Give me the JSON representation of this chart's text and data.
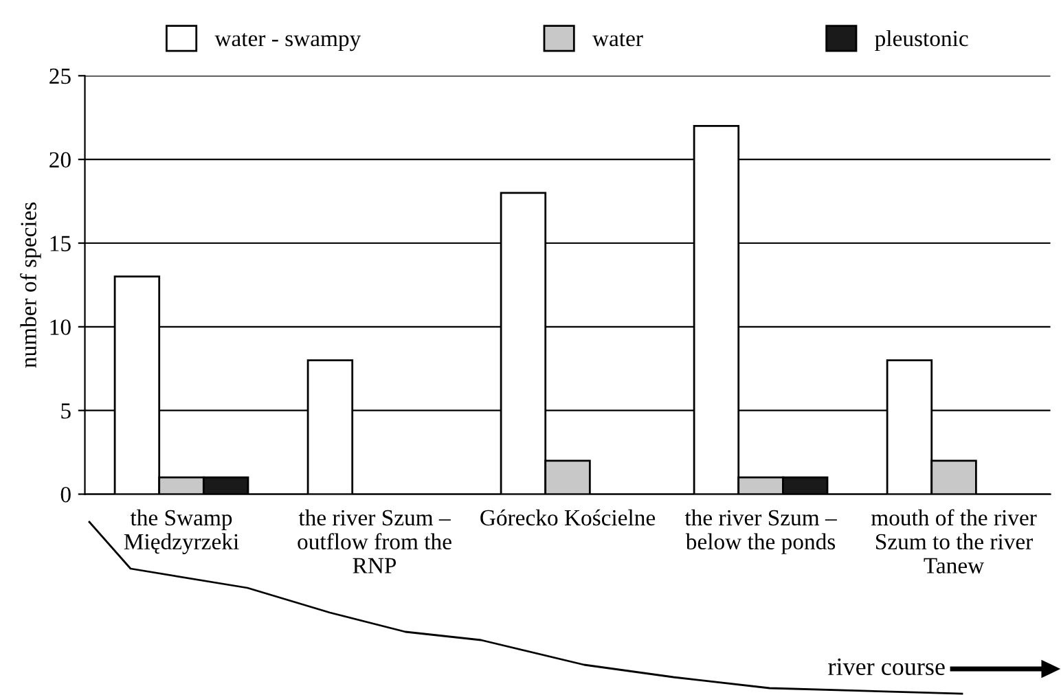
{
  "chart_data": {
    "type": "bar",
    "categories": [
      "the Swamp\nMiędzyrzeki",
      "the river Szum –\noutflow from the\nRNP",
      "Górecko Kościelne",
      "the river Szum –\nbelow the ponds",
      "mouth of the river\nSzum to the river\nTanew"
    ],
    "series": [
      {
        "name": "water - swampy",
        "color": "#ffffff",
        "values": [
          13,
          8,
          18,
          22,
          8
        ]
      },
      {
        "name": "water",
        "color": "#c8c8c8",
        "values": [
          1,
          null,
          2,
          1,
          2
        ]
      },
      {
        "name": "pleustonic",
        "color": "#1a1a1a",
        "values": [
          1,
          null,
          null,
          1,
          null
        ]
      }
    ],
    "ylabel": "number of species",
    "ylim": [
      0,
      25
    ],
    "yticks": [
      0,
      5,
      10,
      15,
      20,
      25
    ],
    "grid": "y",
    "legend": "top",
    "annotations": [
      "river course"
    ]
  }
}
